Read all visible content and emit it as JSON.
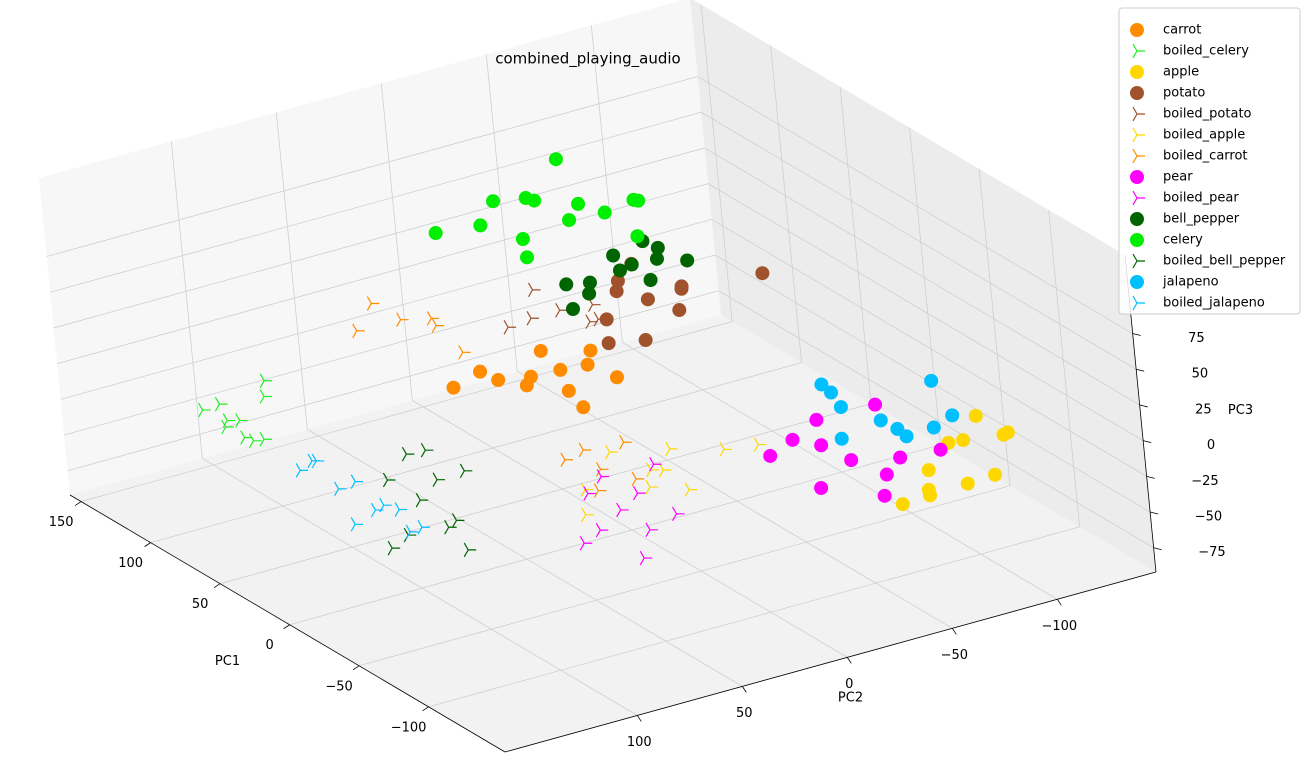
{
  "chart_data": {
    "type": "scatter3d",
    "title": "combined_playing_audio",
    "xlabel": "PC1",
    "ylabel": "PC2",
    "zlabel": "PC3",
    "xlim": [
      -155,
      158
    ],
    "ylim": [
      -147,
      163
    ],
    "zlim": [
      -92,
      130
    ],
    "xticks": [
      {
        "value": -100,
        "label": "−100"
      },
      {
        "value": -50,
        "label": "−50"
      },
      0,
      50,
      100,
      150
    ],
    "yticks": [
      {
        "value": -100,
        "label": "−100"
      },
      {
        "value": -50,
        "label": "−50"
      },
      0,
      50,
      100
    ],
    "zticks": [
      {
        "value": -75,
        "label": "−75"
      },
      {
        "value": -50,
        "label": "−50"
      },
      {
        "value": -25,
        "label": "−25"
      },
      0,
      25,
      50,
      75
    ],
    "grid": true,
    "legend": "upper right",
    "series": [
      {
        "name": "carrot",
        "color": "#ff8c00",
        "marker": "circle",
        "x": [
          13,
          20,
          5,
          25,
          10,
          -5,
          30,
          15,
          0,
          18,
          8,
          35
        ],
        "y": [
          18,
          30,
          10,
          40,
          5,
          20,
          45,
          25,
          0,
          12,
          35,
          55
        ],
        "z": [
          20,
          10,
          25,
          15,
          30,
          5,
          20,
          35,
          15,
          0,
          25,
          10
        ]
      },
      {
        "name": "boiled_celery",
        "color": "#22ee22",
        "marker": "tri",
        "x": [
          69,
          75,
          60,
          80,
          65,
          55,
          72,
          85,
          62,
          78
        ],
        "y": [
          135,
          140,
          130,
          145,
          125,
          138,
          120,
          132,
          145,
          128
        ],
        "z": [
          0,
          10,
          -10,
          5,
          15,
          -5,
          20,
          -15,
          8,
          -20
        ]
      },
      {
        "name": "apple",
        "color": "#ffd700",
        "marker": "circle",
        "x": [
          -106,
          -100,
          -115,
          -95,
          -120,
          -110,
          -90,
          -125,
          -105,
          -98,
          -118
        ],
        "y": [
          -76,
          -90,
          -70,
          -100,
          -85,
          -60,
          -110,
          -95,
          -115,
          -80,
          -105
        ],
        "z": [
          -20,
          -10,
          -30,
          -15,
          -25,
          -35,
          -5,
          -20,
          -10,
          -40,
          0
        ]
      },
      {
        "name": "potato",
        "color": "#a0522d",
        "marker": "circle",
        "x": [
          15,
          25,
          5,
          20,
          10,
          30,
          0,
          18,
          35,
          12,
          -20
        ],
        "y": [
          -27,
          -20,
          -35,
          -10,
          -40,
          -30,
          -15,
          -45,
          -25,
          -5,
          -60
        ],
        "z": [
          50,
          60,
          45,
          40,
          55,
          65,
          35,
          50,
          45,
          30,
          75
        ]
      },
      {
        "name": "boiled_potato",
        "color": "#a0522d",
        "marker": "tri",
        "x": [
          14,
          20,
          5,
          25,
          10,
          0,
          30
        ],
        "y": [
          15,
          25,
          5,
          20,
          0,
          10,
          30
        ],
        "z": [
          60,
          55,
          65,
          70,
          50,
          58,
          45
        ]
      },
      {
        "name": "boiled_apple",
        "color": "#ffd700",
        "marker": "tri",
        "x": [
          -42,
          -30,
          -55,
          -35,
          -50,
          -60,
          -25,
          -45,
          -70,
          -40
        ],
        "y": [
          14,
          25,
          5,
          0,
          20,
          -10,
          35,
          10,
          -20,
          45
        ],
        "z": [
          -20,
          -10,
          -30,
          -15,
          -25,
          -5,
          -35,
          -20,
          0,
          -40
        ]
      },
      {
        "name": "boiled_carrot",
        "color": "#ff8c00",
        "marker": "tri",
        "x": [
          67,
          75,
          60,
          80,
          55,
          -30,
          -20,
          -40,
          -25,
          -35,
          -10,
          50
        ],
        "y": [
          57,
          65,
          45,
          70,
          50,
          30,
          40,
          20,
          15,
          35,
          25,
          40
        ],
        "z": [
          40,
          50,
          35,
          30,
          45,
          -20,
          -15,
          -25,
          -10,
          -30,
          -20,
          20
        ]
      },
      {
        "name": "pear",
        "color": "#ff00ff",
        "marker": "circle",
        "x": [
          -92,
          -85,
          -100,
          -80,
          -95,
          -105,
          -75,
          -90,
          -110,
          -88,
          -70
        ],
        "y": [
          -49,
          -40,
          -60,
          -30,
          -70,
          -55,
          -45,
          -35,
          -80,
          -65,
          -25
        ],
        "z": [
          -10,
          0,
          -20,
          5,
          -15,
          -30,
          10,
          -25,
          -5,
          20,
          -10
        ]
      },
      {
        "name": "boiled_pear",
        "color": "#ff00ff",
        "marker": "tri",
        "x": [
          -44,
          -35,
          -55,
          -40,
          -50,
          -30,
          -60,
          -45,
          -38,
          -65
        ],
        "y": [
          31,
          40,
          25,
          20,
          45,
          30,
          15,
          50,
          10,
          35
        ],
        "z": [
          -40,
          -30,
          -50,
          -35,
          -45,
          -25,
          -40,
          -55,
          -20,
          -60
        ]
      },
      {
        "name": "bell_pepper",
        "color": "#006400",
        "marker": "circle",
        "x": [
          21,
          30,
          10,
          25,
          15,
          35,
          5,
          20,
          40,
          28,
          0,
          12
        ],
        "y": [
          -19,
          -10,
          -30,
          -40,
          0,
          -25,
          -15,
          -50,
          -5,
          -35,
          -20,
          10
        ],
        "z": [
          70,
          60,
          80,
          75,
          65,
          70,
          85,
          65,
          55,
          80,
          75,
          60
        ]
      },
      {
        "name": "celery",
        "color": "#00ee00",
        "marker": "circle",
        "x": [
          38,
          60,
          50,
          30,
          45,
          20,
          70,
          55,
          40,
          25,
          35,
          15,
          65,
          48
        ],
        "y": [
          -8,
          20,
          0,
          -20,
          10,
          -30,
          35,
          -15,
          -40,
          -5,
          15,
          -25,
          10,
          5
        ],
        "z": [
          100,
          95,
          110,
          105,
          90,
          115,
          90,
          130,
          100,
          120,
          85,
          95,
          105,
          115
        ]
      },
      {
        "name": "boiled_bell_pepper",
        "color": "#006400",
        "marker": "tri",
        "x": [
          -2,
          10,
          -15,
          5,
          -25,
          -10,
          20,
          -30,
          0,
          -5,
          15
        ],
        "y": [
          98,
          105,
          90,
          85,
          100,
          110,
          80,
          95,
          75,
          115,
          92
        ],
        "z": [
          -30,
          -20,
          -40,
          -25,
          -35,
          -45,
          -15,
          -50,
          -20,
          -55,
          -10
        ]
      },
      {
        "name": "jalapeno",
        "color": "#00bfff",
        "marker": "circle",
        "x": [
          -78,
          -70,
          -85,
          -65,
          -90,
          -75,
          -60,
          -95,
          -80,
          -72
        ],
        "y": [
          -73,
          -60,
          -80,
          -55,
          -90,
          -100,
          -65,
          -70,
          -50,
          -110
        ],
        "z": [
          0,
          10,
          -10,
          25,
          -5,
          15,
          -20,
          5,
          30,
          -15
        ]
      },
      {
        "name": "boiled_jalapeno",
        "color": "#00bfff",
        "marker": "tri",
        "x": [
          38,
          30,
          20,
          10,
          0,
          -10,
          -20,
          -31,
          25,
          5,
          -5
        ],
        "y": [
          128,
          125,
          122,
          120,
          118,
          120,
          115,
          116,
          130,
          125,
          110
        ],
        "z": [
          -20,
          -10,
          -25,
          -15,
          -30,
          -20,
          -35,
          -25,
          -5,
          -40,
          -30
        ]
      }
    ]
  }
}
